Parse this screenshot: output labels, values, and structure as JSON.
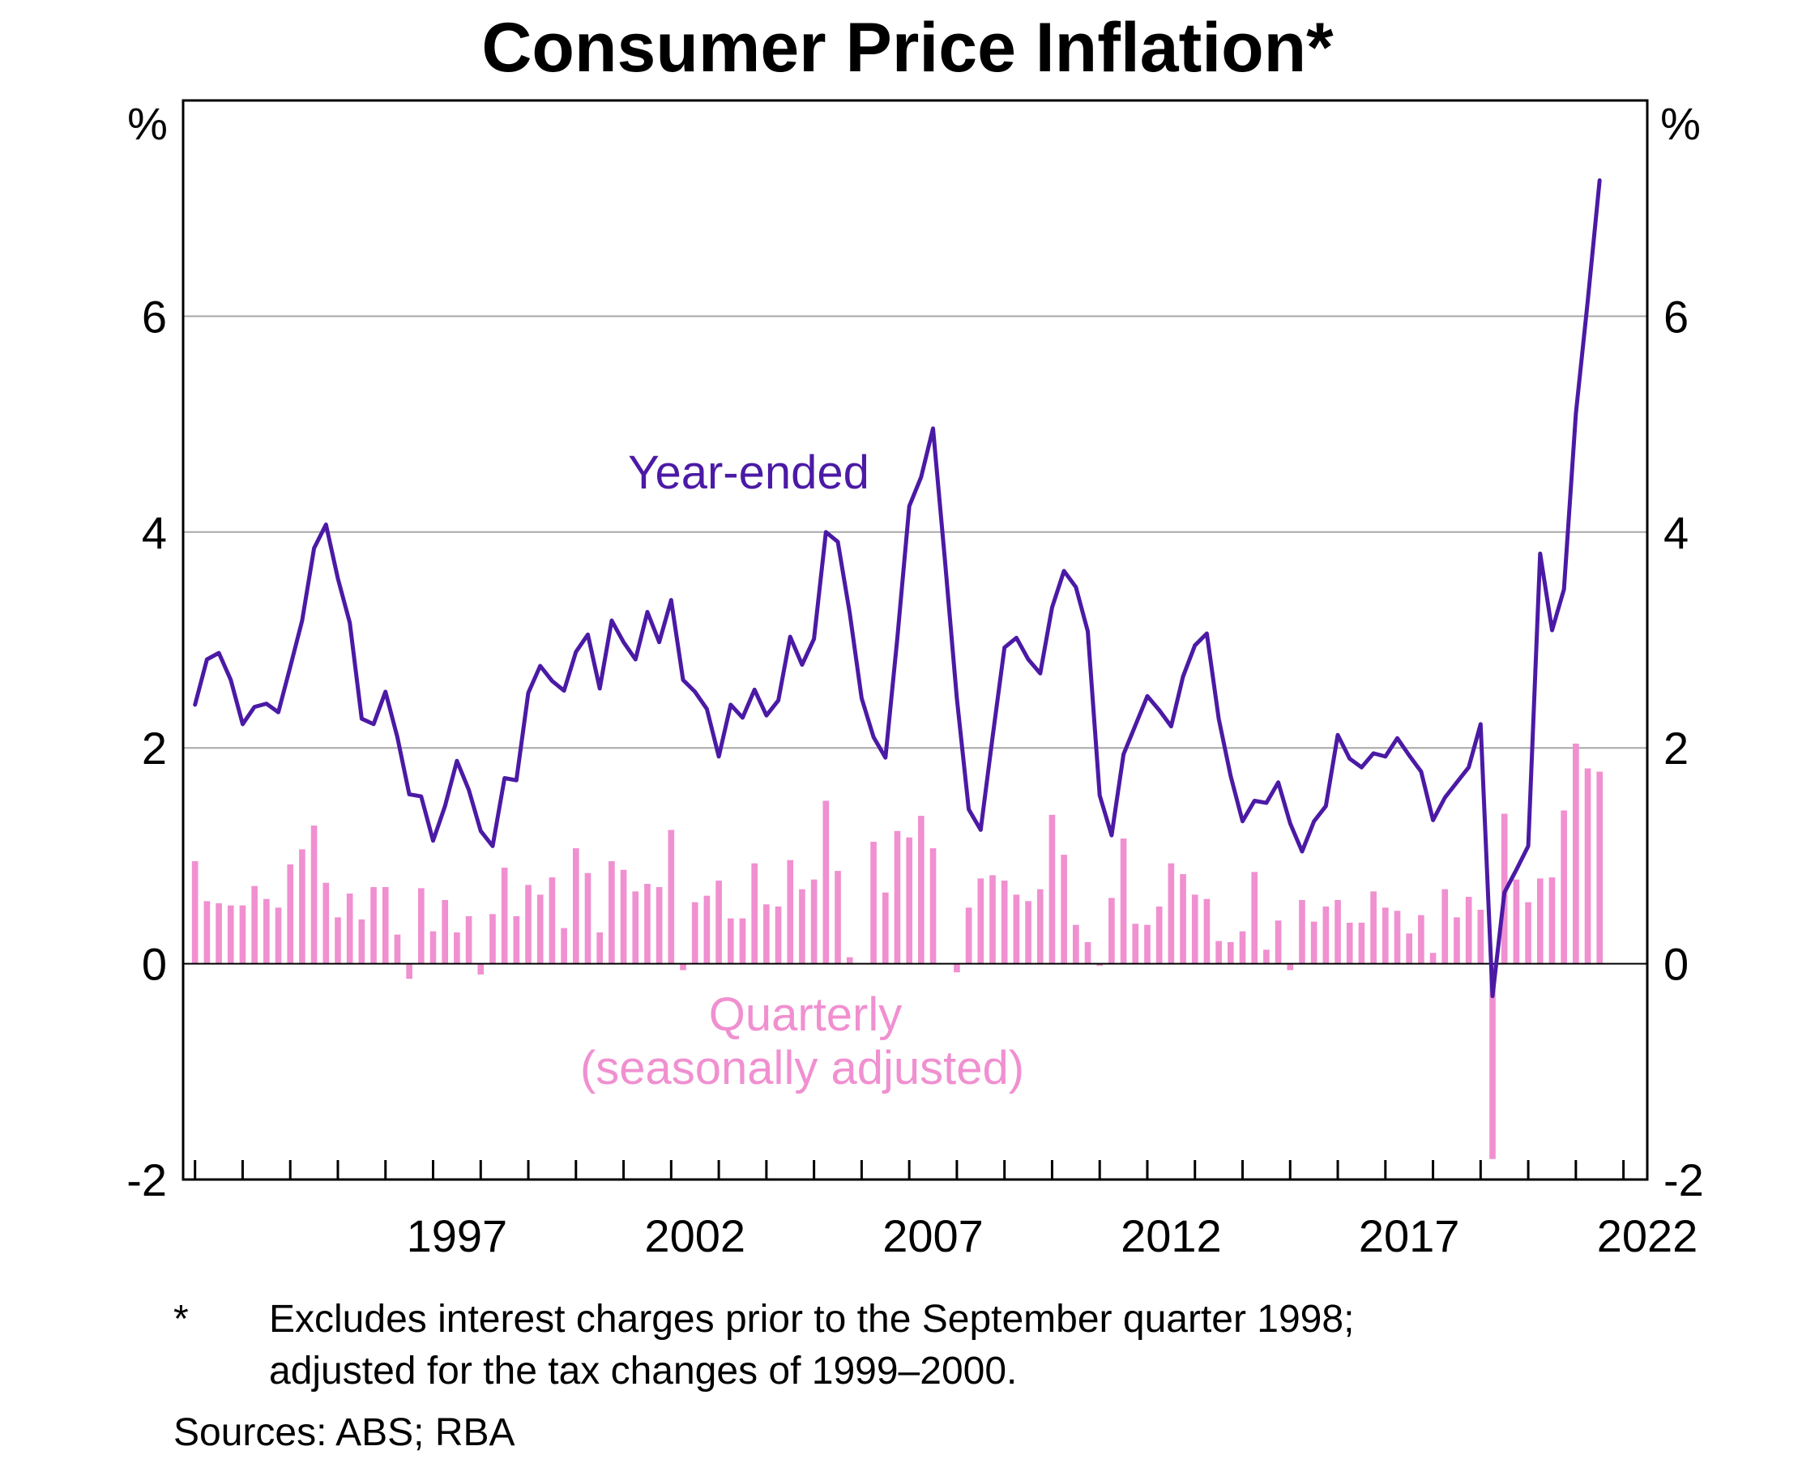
{
  "chart_data": {
    "type": "bar+line",
    "title": "Consumer Price Inflation*",
    "y_unit_left": "%",
    "y_unit_right": "%",
    "ylim": [
      -2,
      8
    ],
    "yticks": [
      -2,
      0,
      2,
      4,
      6
    ],
    "xlim": [
      1991.75,
      2022.5
    ],
    "xtick_labels": [
      "1997",
      "2002",
      "2007",
      "2012",
      "2017",
      "2022"
    ],
    "grid": "horizontal",
    "series": [
      {
        "name": "Year-ended",
        "type": "line",
        "color": "#4b1aa5",
        "start": 1992.0,
        "step": 0.25,
        "values": [
          2.4,
          2.82,
          2.88,
          2.63,
          2.22,
          2.38,
          2.41,
          2.33,
          2.75,
          3.18,
          3.85,
          4.07,
          3.57,
          3.16,
          2.27,
          2.22,
          2.52,
          2.1,
          1.57,
          1.55,
          1.14,
          1.46,
          1.88,
          1.61,
          1.23,
          1.09,
          1.72,
          1.7,
          2.51,
          2.76,
          2.62,
          2.53,
          2.89,
          3.05,
          2.55,
          3.18,
          2.98,
          2.82,
          3.26,
          2.98,
          3.37,
          2.63,
          2.52,
          2.36,
          1.92,
          2.4,
          2.28,
          2.54,
          2.3,
          2.44,
          3.03,
          2.77,
          3.01,
          4.0,
          3.91,
          3.25,
          2.46,
          2.1,
          1.91,
          3.02,
          4.24,
          4.51,
          4.96,
          3.74,
          2.46,
          1.43,
          1.24,
          2.1,
          2.93,
          3.02,
          2.82,
          2.69,
          3.3,
          3.64,
          3.49,
          3.08,
          1.56,
          1.19,
          1.94,
          2.21,
          2.48,
          2.35,
          2.2,
          2.66,
          2.95,
          3.06,
          2.27,
          1.74,
          1.32,
          1.51,
          1.49,
          1.68,
          1.3,
          1.04,
          1.32,
          1.46,
          2.12,
          1.9,
          1.82,
          1.95,
          1.92,
          2.09,
          1.93,
          1.78,
          1.33,
          1.54,
          1.68,
          1.82,
          2.22,
          -0.3,
          0.66,
          0.87,
          1.09,
          3.8,
          3.09,
          3.47,
          5.1,
          6.14,
          7.26
        ]
      },
      {
        "name": "Quarterly",
        "type": "bar",
        "color": "#f090d0",
        "start": 1992.0,
        "step": 0.25,
        "values": [
          0.95,
          0.58,
          0.56,
          0.54,
          0.54,
          0.72,
          0.6,
          0.52,
          0.92,
          1.06,
          1.28,
          0.75,
          0.43,
          0.65,
          0.41,
          0.71,
          0.71,
          0.27,
          -0.14,
          0.7,
          0.3,
          0.59,
          0.29,
          0.44,
          -0.1,
          0.46,
          0.89,
          0.44,
          0.73,
          0.64,
          0.8,
          0.33,
          1.07,
          0.84,
          0.29,
          0.95,
          0.87,
          0.67,
          0.74,
          0.71,
          1.24,
          -0.06,
          0.57,
          0.63,
          0.77,
          0.42,
          0.42,
          0.93,
          0.55,
          0.53,
          0.96,
          0.69,
          0.78,
          1.51,
          0.86,
          0.06,
          0.0,
          1.13,
          0.66,
          1.23,
          1.17,
          1.37,
          1.07,
          0.0,
          -0.08,
          0.52,
          0.79,
          0.82,
          0.77,
          0.64,
          0.58,
          0.69,
          1.38,
          1.01,
          0.36,
          0.2,
          -0.02,
          0.61,
          1.16,
          0.37,
          0.36,
          0.53,
          0.93,
          0.83,
          0.64,
          0.6,
          0.21,
          0.2,
          0.3,
          0.85,
          0.13,
          0.4,
          -0.06,
          0.59,
          0.39,
          0.53,
          0.59,
          0.38,
          0.38,
          0.67,
          0.52,
          0.49,
          0.28,
          0.45,
          0.1,
          0.69,
          0.43,
          0.62,
          0.5,
          -1.81,
          1.39,
          0.78,
          0.57,
          0.79,
          0.8,
          1.42,
          2.04,
          1.81,
          1.78
        ]
      }
    ],
    "annotations": [
      {
        "text": "Year-ended",
        "color": "#4b1aa5"
      },
      {
        "text": "Quarterly",
        "color": "#f090d0"
      },
      {
        "text": "(seasonally adjusted)",
        "color": "#f090d0"
      }
    ]
  },
  "footnote": {
    "marker": "*",
    "line1": "Excludes interest charges prior to the September quarter 1998;",
    "line2": "adjusted for the tax changes of 1999–2000."
  },
  "sources": "Sources: ABS; RBA"
}
